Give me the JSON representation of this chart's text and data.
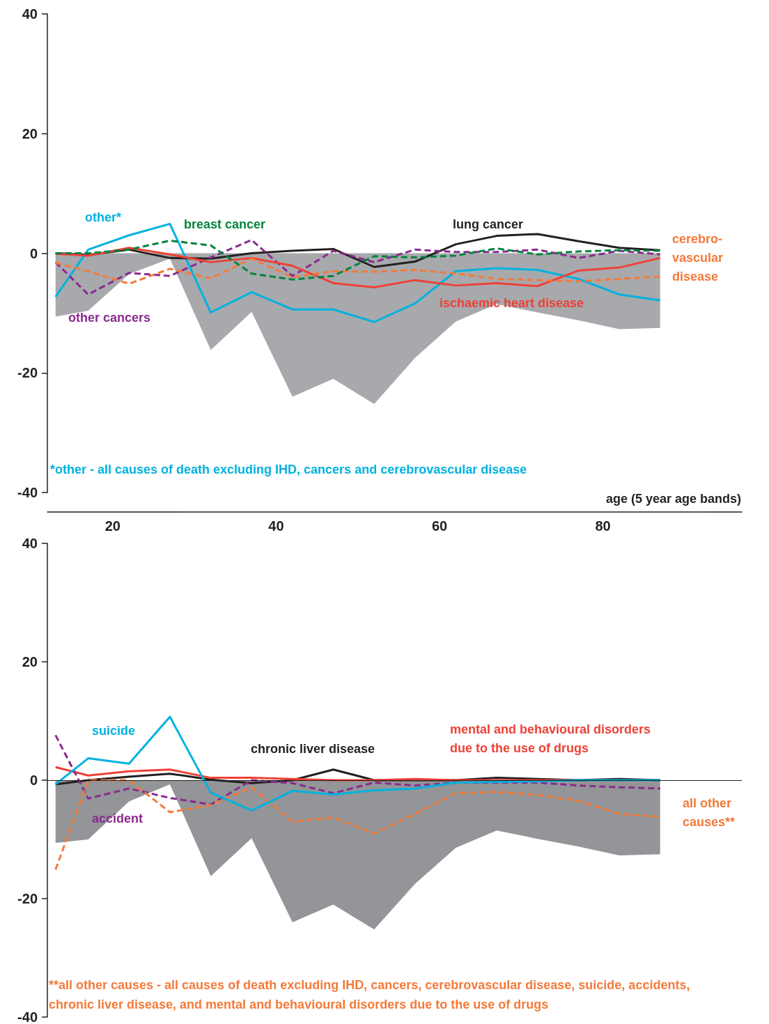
{
  "chart_data": [
    {
      "type": "line",
      "xlabel": "age (5 year age bands)",
      "x": [
        13,
        17,
        22,
        27,
        32,
        37,
        42,
        47,
        52,
        57,
        62,
        67,
        72,
        77,
        82,
        87
      ],
      "xlim": [
        12,
        97
      ],
      "xticks": [
        20,
        40,
        60,
        80
      ],
      "ylim": [
        -40,
        40
      ],
      "yticks": [
        -40,
        -20,
        0,
        20,
        40
      ],
      "marker": "none",
      "annotations": [
        "*other - all causes of death excluding IHD, cancers and cerebrovascular disease"
      ],
      "series": [
        {
          "type": "area",
          "color": "#a7a9ac",
          "values": [
            -10.6,
            -9.6,
            -3.5,
            -0.9,
            -16.2,
            -9.8,
            -24,
            -21,
            -25.2,
            -17.5,
            -11.4,
            -8.5,
            -9.9,
            -11.2,
            -12.7,
            -12.5
          ]
        },
        {
          "name": "other*",
          "color": "#00b2de",
          "line_style": "solid",
          "values": [
            -7.3,
            0.6,
            3.0,
            4.9,
            -9.9,
            -6.5,
            -9.4,
            -9.4,
            -11.5,
            -8.4,
            -3.0,
            -2.5,
            -2.8,
            -4.3,
            -6.9,
            -7.9
          ]
        },
        {
          "name": "lung cancer",
          "color": "#231f20",
          "line_style": "solid",
          "values": [
            0,
            -0.3,
            0.6,
            -0.8,
            -0.9,
            0,
            0.4,
            0.7,
            -2.3,
            -1.4,
            1.5,
            2.9,
            3.2,
            2.0,
            0.9,
            0.5
          ]
        },
        {
          "name": "other cancers",
          "color": "#8b2a8e",
          "line_style": "dashed",
          "values": [
            -1.5,
            -6.9,
            -3.3,
            -3.8,
            -0.7,
            2.2,
            -3.8,
            0.4,
            -1.5,
            0.6,
            0.2,
            0.2,
            0.6,
            -0.8,
            0.4,
            -0.2
          ]
        },
        {
          "name": "ischaemic heart disease",
          "color": "#ef4136",
          "line_style": "solid",
          "values": [
            -0.1,
            -0.4,
            0.9,
            -0.2,
            -1.5,
            -0.8,
            -2.1,
            -5.0,
            -5.7,
            -4.5,
            -5.4,
            -5.0,
            -5.5,
            -2.9,
            -2.4,
            -0.8
          ]
        },
        {
          "name": "cerebro-\nvascular\ndisease",
          "color": "#f47a3a",
          "line_style": "dashed",
          "values": [
            -1.6,
            -3.0,
            -5.1,
            -2.6,
            -4.2,
            -0.9,
            -4.0,
            -3.0,
            -3.1,
            -2.8,
            -3.4,
            -4.3,
            -4.5,
            -4.7,
            -4.3,
            -3.9
          ]
        },
        {
          "name": "breast cancer",
          "color": "#00843d",
          "line_style": "dashed",
          "values": [
            0,
            0,
            0.6,
            2.1,
            1.3,
            -3.4,
            -4.4,
            -3.8,
            -0.5,
            -0.7,
            -0.4,
            0.8,
            -0.2,
            0.3,
            0.5,
            0.4
          ]
        }
      ]
    },
    {
      "type": "line",
      "x": [
        13,
        17,
        22,
        27,
        32,
        37,
        42,
        47,
        52,
        57,
        62,
        67,
        72,
        77,
        82,
        87
      ],
      "xlim": [
        12,
        97
      ],
      "ylim": [
        -40,
        40
      ],
      "yticks": [
        -40,
        -20,
        0,
        20,
        40
      ],
      "marker": "none",
      "tick_labels": "y",
      "ref_lines": [
        {
          "axis": "y",
          "value": 0,
          "color": "#231f20"
        }
      ],
      "annotations": [
        "**all other causes - all causes of death excluding IHD, cancers, cerebrovascular disease, suicide, accidents, chronic liver disease, and mental and behavioural disorders due to the use of drugs"
      ],
      "series": [
        {
          "type": "area",
          "color": "#939598",
          "values": [
            -10.6,
            -10.0,
            -3.6,
            -0.7,
            -16.2,
            -9.8,
            -24,
            -21,
            -25.2,
            -17.5,
            -11.4,
            -8.5,
            -9.9,
            -11.2,
            -12.7,
            -12.5
          ]
        },
        {
          "name": "chronic liver disease",
          "color": "#231f20",
          "line_style": "solid",
          "values": [
            -0.7,
            0,
            0.6,
            1.1,
            0.1,
            -0.5,
            0,
            1.8,
            0,
            0,
            0,
            0.4,
            0.2,
            0,
            0.2,
            0
          ]
        },
        {
          "name": "mental and behavioural disorders\ndue to the use of drugs",
          "color": "#ef4136",
          "line_style": "solid",
          "values": [
            2.2,
            0.8,
            1.5,
            1.8,
            0.4,
            0.4,
            0.2,
            0,
            0,
            0.2,
            0,
            0,
            0,
            0,
            null,
            null
          ]
        },
        {
          "name": "accident",
          "color": "#8b2a8e",
          "line_style": "dashed",
          "values": [
            7.6,
            -3.1,
            -1.4,
            -3.0,
            -4.1,
            0,
            -0.5,
            -2.2,
            -0.4,
            -0.9,
            -0.4,
            -0.4,
            -0.4,
            -0.9,
            -1.2,
            -1.4
          ]
        },
        {
          "name": "all other\ncauses**",
          "color": "#f47a3a",
          "line_style": "dashed",
          "values": [
            -15.1,
            0,
            0,
            -5.4,
            -4.2,
            -1.2,
            -7.0,
            -6.3,
            -9.0,
            -5.7,
            -2.2,
            -2.0,
            -2.5,
            -3.5,
            -5.7,
            -6.2
          ]
        },
        {
          "name": "suicide",
          "color": "#00b2de",
          "line_style": "solid",
          "values": [
            -0.7,
            3.7,
            2.8,
            10.7,
            -2.1,
            -5.1,
            -1.8,
            -2.4,
            -1.7,
            -1.4,
            -0.4,
            -0.3,
            -0.2,
            0,
            0,
            0
          ]
        }
      ]
    }
  ]
}
